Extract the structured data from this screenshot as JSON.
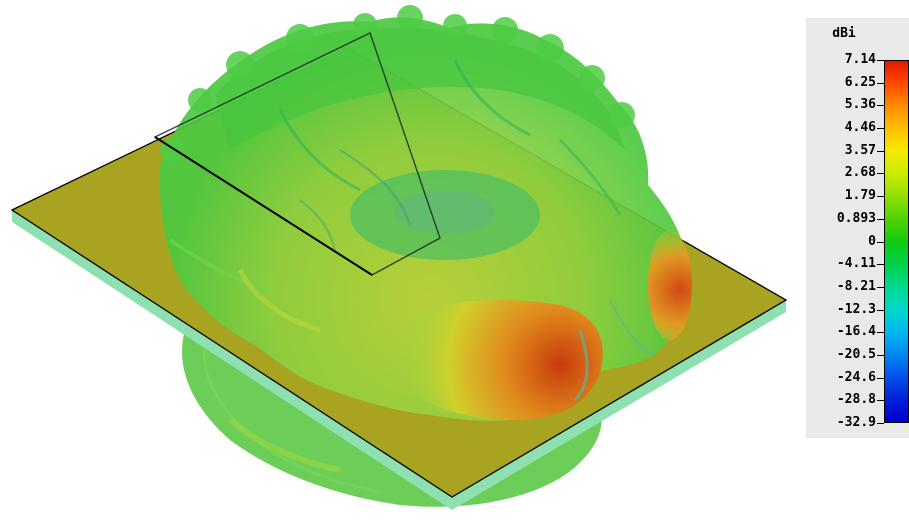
{
  "legend": {
    "title": "dBi",
    "ticks": [
      "7.14",
      "6.25",
      "5.36",
      "4.46",
      "3.57",
      "2.68",
      "1.79",
      "0.893",
      "0",
      "-4.11",
      "-8.21",
      "-12.3",
      "-16.4",
      "-20.5",
      "-24.6",
      "-28.8",
      "-32.9"
    ],
    "colors": [
      "#e21800",
      "#ff4a00",
      "#ff8c00",
      "#ffc000",
      "#f2ea00",
      "#c8ec00",
      "#8fe000",
      "#4fd200",
      "#10cc10",
      "#00d04a",
      "#00d890",
      "#00d8c8",
      "#00b8ee",
      "#0088f0",
      "#0050e8",
      "#0020d8",
      "#0000d0"
    ]
  },
  "colors": {
    "ground_plane": "#a8a321",
    "substrate_edge": "#8fe0b0",
    "pattern_green": "#3ec83a",
    "pattern_hot": "#d84a10"
  }
}
